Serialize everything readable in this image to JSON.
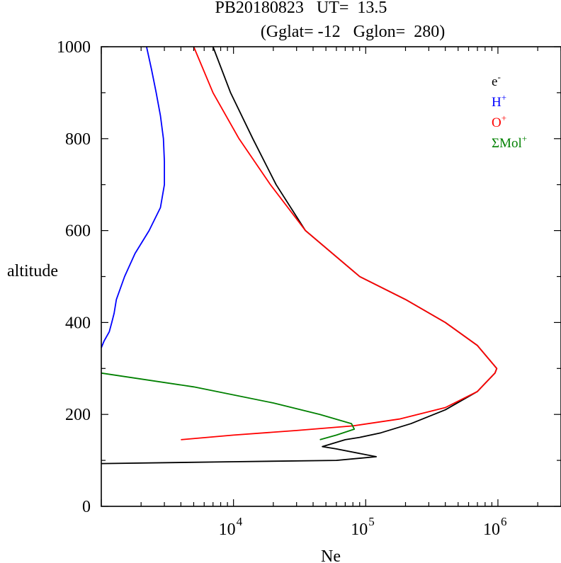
{
  "chart_data": {
    "type": "line",
    "title_line1": "PB20180823   UT=  13.5",
    "title_line2": "(Gglat= -12   Gglon=  280)",
    "xlabel": "Ne",
    "ylabel": "altitude",
    "xscale": "log",
    "xlim": [
      1000,
      3000000
    ],
    "ylim": [
      0,
      1000
    ],
    "y_ticks": [
      {
        "value": 0,
        "label": "0"
      },
      {
        "value": 200,
        "label": "200"
      },
      {
        "value": 400,
        "label": "400"
      },
      {
        "value": 600,
        "label": "600"
      },
      {
        "value": 800,
        "label": "800"
      },
      {
        "value": 1000,
        "label": "1000"
      }
    ],
    "x_ticks": [
      {
        "value": 10000,
        "base": "10",
        "exp": "4"
      },
      {
        "value": 100000,
        "base": "10",
        "exp": "5"
      },
      {
        "value": 1000000,
        "base": "10",
        "exp": "6"
      }
    ],
    "legend_position": "top-right",
    "grid": false,
    "series": [
      {
        "name": "e",
        "sup": "-",
        "color": "#000000",
        "points": [
          [
            7000,
            1000
          ],
          [
            9500,
            900
          ],
          [
            14000,
            800
          ],
          [
            21000,
            700
          ],
          [
            35000,
            600
          ],
          [
            90000,
            500
          ],
          [
            200000,
            450
          ],
          [
            400000,
            400
          ],
          [
            700000,
            350
          ],
          [
            980000,
            300
          ],
          [
            950000,
            290
          ],
          [
            700000,
            250
          ],
          [
            400000,
            210
          ],
          [
            220000,
            180
          ],
          [
            130000,
            160
          ],
          [
            90000,
            150
          ],
          [
            70000,
            145
          ],
          [
            47000,
            130
          ],
          [
            60000,
            125
          ],
          [
            120000,
            108
          ],
          [
            60000,
            100
          ],
          [
            10000,
            97
          ],
          [
            1000,
            93
          ]
        ]
      },
      {
        "name": "H",
        "sup": "+",
        "color": "#0000ff",
        "points": [
          [
            2200,
            1000
          ],
          [
            2400,
            950
          ],
          [
            2600,
            900
          ],
          [
            2800,
            850
          ],
          [
            2950,
            800
          ],
          [
            3000,
            750
          ],
          [
            3000,
            700
          ],
          [
            2800,
            650
          ],
          [
            2300,
            600
          ],
          [
            1800,
            550
          ],
          [
            1500,
            500
          ],
          [
            1300,
            450
          ],
          [
            1250,
            420
          ],
          [
            1200,
            400
          ],
          [
            1150,
            380
          ],
          [
            1050,
            360
          ],
          [
            1000,
            345
          ]
        ]
      },
      {
        "name": "O",
        "sup": "+",
        "color": "#ff0000",
        "points": [
          [
            5000,
            1000
          ],
          [
            7000,
            900
          ],
          [
            11000,
            800
          ],
          [
            19000,
            700
          ],
          [
            35000,
            600
          ],
          [
            90000,
            500
          ],
          [
            200000,
            450
          ],
          [
            400000,
            400
          ],
          [
            700000,
            350
          ],
          [
            980000,
            300
          ],
          [
            950000,
            290
          ],
          [
            700000,
            250
          ],
          [
            400000,
            215
          ],
          [
            180000,
            190
          ],
          [
            80000,
            175
          ],
          [
            30000,
            165
          ],
          [
            10000,
            155
          ],
          [
            4000,
            145
          ]
        ]
      },
      {
        "name": "ΣMol",
        "sup": "+",
        "color": "#008000",
        "points": [
          [
            1000,
            290
          ],
          [
            5000,
            260
          ],
          [
            20000,
            225
          ],
          [
            45000,
            200
          ],
          [
            78000,
            180
          ],
          [
            82000,
            168
          ],
          [
            60000,
            155
          ],
          [
            45000,
            145
          ]
        ]
      }
    ]
  }
}
